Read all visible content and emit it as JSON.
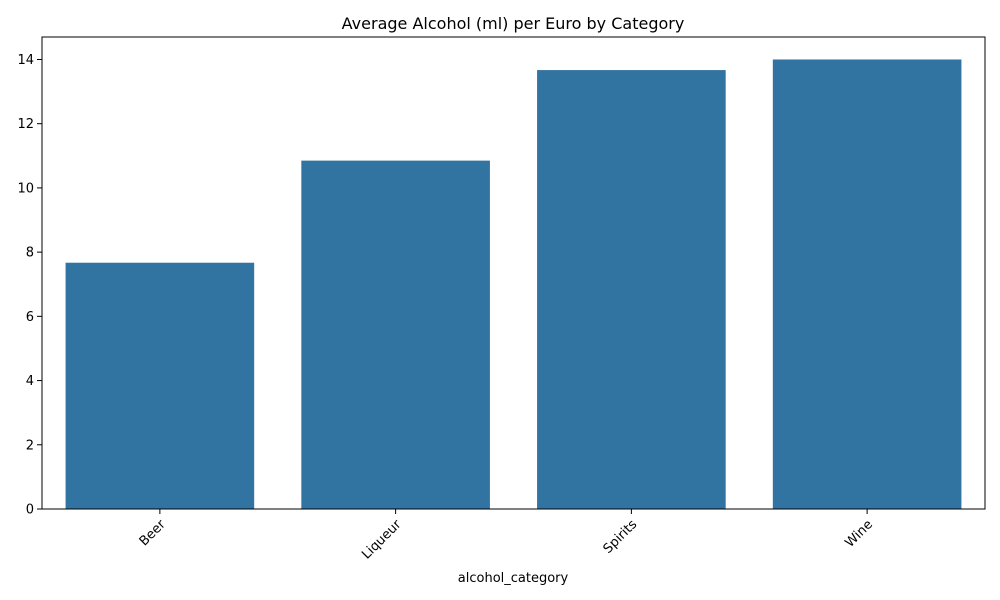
{
  "chart_data": {
    "type": "bar",
    "title": "Average Alcohol (ml) per Euro by Category",
    "xlabel": "alcohol_category",
    "ylabel": "",
    "categories": [
      "Beer",
      "Liqueur",
      "Spirits",
      "Wine"
    ],
    "values": [
      7.67,
      10.85,
      13.67,
      14.0
    ],
    "ylim": [
      0,
      14.7
    ],
    "yticks": [
      0,
      2,
      4,
      6,
      8,
      10,
      12,
      14
    ],
    "xtick_rotation_deg": 45,
    "grid": false,
    "legend": "none",
    "bar_color": "#3274a1"
  }
}
